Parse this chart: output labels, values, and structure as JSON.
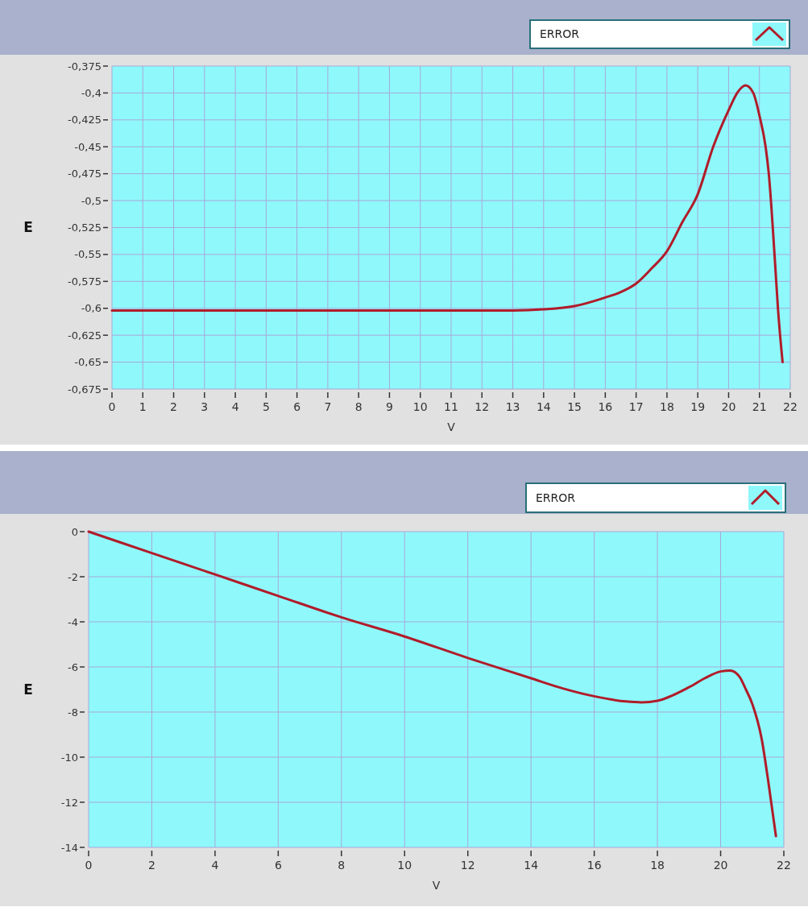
{
  "chart_data": [
    {
      "type": "line",
      "xlabel": "V",
      "ylabel": "E",
      "legend": "top right",
      "grid": true,
      "xlim": [
        0,
        22
      ],
      "xticks": [
        0,
        1,
        2,
        3,
        4,
        5,
        6,
        7,
        8,
        9,
        10,
        11,
        12,
        13,
        14,
        15,
        16,
        17,
        18,
        19,
        20,
        21,
        22
      ],
      "ylim": [
        -0.675,
        -0.375
      ],
      "yticks": [
        {
          "value": -0.675,
          "label": "-0,675"
        },
        {
          "value": -0.65,
          "label": "-0,65"
        },
        {
          "value": -0.625,
          "label": "-0,625"
        },
        {
          "value": -0.6,
          "label": "-0,6"
        },
        {
          "value": -0.575,
          "label": "-0,575"
        },
        {
          "value": -0.55,
          "label": "-0,55"
        },
        {
          "value": -0.525,
          "label": "-0,525"
        },
        {
          "value": -0.5,
          "label": "-0,5"
        },
        {
          "value": -0.475,
          "label": "-0,475"
        },
        {
          "value": -0.45,
          "label": "-0,45"
        },
        {
          "value": -0.425,
          "label": "-0,425"
        },
        {
          "value": -0.4,
          "label": "-0,4"
        },
        {
          "value": -0.375,
          "label": "-0,375"
        }
      ],
      "series": [
        {
          "name": "ERROR",
          "color": "#b01c2a",
          "x": [
            0,
            4,
            8,
            12,
            13,
            14,
            15,
            16,
            16.5,
            17,
            17.5,
            18,
            18.5,
            19,
            19.5,
            20,
            20.3,
            20.55,
            20.8,
            21,
            21.2,
            21.3,
            21.5,
            21.6,
            21.75
          ],
          "values": [
            -0.602,
            -0.602,
            -0.602,
            -0.602,
            -0.602,
            -0.601,
            -0.598,
            -0.59,
            -0.585,
            -0.577,
            -0.563,
            -0.547,
            -0.52,
            -0.494,
            -0.45,
            -0.416,
            -0.399,
            -0.393,
            -0.4,
            -0.421,
            -0.45,
            -0.474,
            -0.555,
            -0.6,
            -0.65
          ]
        }
      ]
    },
    {
      "type": "line",
      "xlabel": "V",
      "ylabel": "E",
      "legend": "top right",
      "grid": true,
      "xlim": [
        0,
        22
      ],
      "xticks": [
        0,
        2,
        4,
        6,
        8,
        10,
        12,
        14,
        16,
        18,
        20,
        22
      ],
      "ylim": [
        -14,
        0
      ],
      "yticks": [
        -14,
        -12,
        -10,
        -8,
        -6,
        -4,
        -2,
        0
      ],
      "series": [
        {
          "name": "ERROR",
          "color": "#b01c2a",
          "x": [
            0,
            2,
            4,
            6,
            8,
            10,
            12,
            14,
            15,
            16,
            17,
            17.5,
            18,
            19,
            19.5,
            20,
            20.3,
            20.6,
            20.8,
            21,
            21.3,
            21.5,
            21.75
          ],
          "values": [
            0,
            -0.95,
            -1.9,
            -2.85,
            -3.8,
            -4.65,
            -5.6,
            -6.5,
            -6.95,
            -7.3,
            -7.53,
            -7.57,
            -7.5,
            -6.9,
            -6.5,
            -6.2,
            -6.16,
            -6.44,
            -7.0,
            -7.63,
            -9.2,
            -11.0,
            -13.5
          ]
        }
      ]
    }
  ]
}
